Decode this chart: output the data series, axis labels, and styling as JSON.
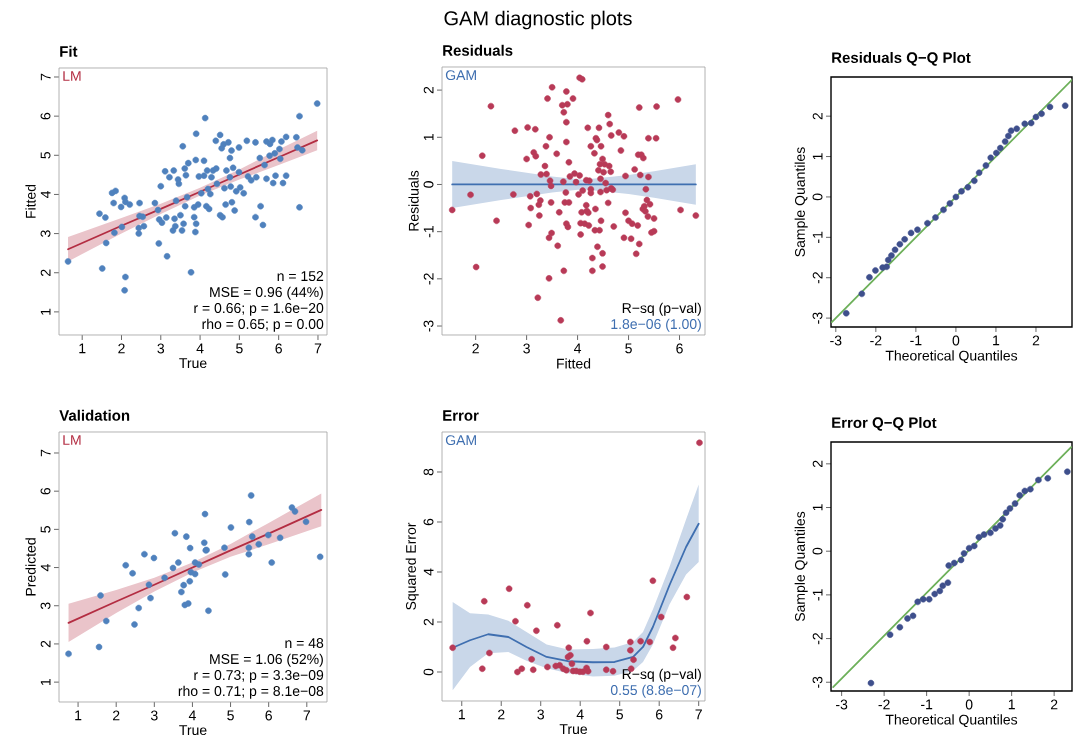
{
  "chart_data": [
    {
      "type": "other",
      "title": "GAM diagnostic plots"
    },
    {
      "type": "scatter",
      "title": "Fit",
      "xlabel": "True",
      "ylabel": "Fitted",
      "xlim": [
        0.41,
        7.23
      ],
      "ylim": [
        0.41,
        7.23
      ],
      "xticks": [
        1,
        2,
        3,
        4,
        5,
        6,
        7
      ],
      "yticks": [
        1,
        2,
        3,
        4,
        5,
        6,
        7
      ],
      "annotations": [
        "n = 152",
        "MSE = 0.96 (44%)",
        "r = 0.66; p = 1.6e−20",
        "rho = 0.65; p = 0.00"
      ],
      "series": [
        {
          "type": "scatter",
          "color": "#4f81bd",
          "x": [
            0.64,
            1.51,
            1.44,
            1.59,
            1.61,
            1.76,
            1.85,
            1.8,
            1.82,
            1.99,
            2.08,
            2.01,
            2.1,
            2.21,
            2.1,
            2.08,
            2.46,
            2.46,
            2.44,
            2.44,
            2.57,
            2.54,
            2.85,
            2.93,
            2.95,
            3.0,
            2.96,
            3.03,
            3.11,
            3.14,
            3.16,
            3.22,
            3.31,
            3.33,
            3.35,
            3.37,
            3.39,
            3.44,
            3.46,
            3.5,
            3.54,
            3.56,
            3.58,
            3.61,
            3.62,
            3.64,
            3.67,
            3.7,
            3.77,
            3.85,
            3.85,
            3.88,
            3.89,
            3.9,
            3.9,
            3.95,
            3.97,
            4.03,
            4.1,
            4.1,
            4.13,
            4.16,
            4.18,
            4.2,
            4.23,
            4.26,
            4.29,
            4.33,
            4.4,
            4.41,
            4.43,
            4.51,
            4.51,
            4.55,
            4.57,
            4.6,
            4.62,
            4.65,
            4.67,
            4.72,
            4.76,
            4.76,
            4.78,
            4.8,
            4.81,
            4.84,
            4.88,
            4.92,
            4.99,
            4.99,
            5.02,
            5.11,
            5.19,
            5.22,
            5.3,
            5.41,
            5.41,
            5.43,
            5.52,
            5.54,
            5.6,
            5.64,
            5.69,
            5.69,
            5.77,
            5.78,
            5.84,
            5.86,
            5.9,
            5.92,
            6.02,
            6.07,
            6.04,
            6.11,
            6.19,
            6.19,
            6.45,
            6.48,
            6.53,
            6.53,
            6.6,
            6.98
          ],
          "values": [
            2.29,
            2.11,
            3.51,
            3.41,
            2.76,
            4.04,
            4.09,
            3.78,
            3.02,
            3.68,
            3.91,
            3.17,
            3.81,
            3.74,
            1.89,
            1.55,
            3.78,
            3.45,
            3.14,
            3.0,
            3.19,
            3.43,
            3.78,
            3.6,
            2.75,
            4.21,
            3.36,
            3.28,
            4.59,
            3.41,
            2.42,
            4.44,
            3.08,
            4.61,
            3.38,
            3.19,
            3.84,
            4.38,
            4.27,
            3.47,
            3.08,
            5.23,
            3.25,
            4.66,
            3.7,
            4.49,
            3.93,
            4.8,
            2.01,
            3.67,
            3.42,
            3.04,
            4.88,
            5.55,
            3.25,
            3.74,
            4.46,
            4.03,
            4.86,
            4.48,
            5.95,
            3.7,
            4.61,
            4.14,
            3.63,
            4.01,
            4.44,
            4.61,
            5.37,
            4.66,
            4.27,
            5.52,
            3.47,
            5.18,
            3.42,
            5.28,
            4.16,
            3.74,
            4.61,
            5.33,
            4.93,
            4.44,
            4.2,
            5.12,
            3.8,
            4.68,
            3.59,
            4.08,
            5.2,
            4.57,
            4.18,
            4.03,
            5.37,
            4.46,
            4.36,
            5.33,
            3.42,
            4.44,
            4.93,
            3.7,
            3.22,
            4.75,
            4.4,
            5.35,
            4.99,
            5.29,
            5.39,
            4.29,
            5.05,
            4.48,
            5.16,
            5.35,
            4.91,
            4.29,
            5.47,
            4.48,
            5.46,
            5.2,
            6.0,
            3.67,
            5.13,
            6.32
          ]
        },
        {
          "type": "line",
          "name": "LM",
          "marker": "none",
          "color": "#b32d42",
          "x": [
            0.64,
            2,
            3,
            4,
            5,
            6,
            6.98
          ],
          "values": [
            2.6,
            3.2,
            3.63,
            4.07,
            4.51,
            4.95,
            5.38
          ],
          "lower": [
            2.29,
            3.0,
            3.5,
            3.97,
            4.38,
            4.75,
            5.13
          ],
          "upper": [
            2.91,
            3.4,
            3.76,
            4.17,
            4.64,
            5.15,
            5.63
          ]
        }
      ]
    },
    {
      "type": "scatter",
      "title": "Residuals",
      "xlabel": "Fitted",
      "ylabel": "Residuals",
      "xlim": [
        1.34,
        6.5
      ],
      "ylim": [
        -3.19,
        2.49
      ],
      "xticks": [
        2,
        3,
        4,
        5,
        6
      ],
      "yticks": [
        -3,
        -2,
        -1,
        0,
        1,
        2
      ],
      "annotations": [
        "R−sq (p−val)",
        "1.8e−06 (1.00)"
      ],
      "series": [
        {
          "type": "scatter",
          "color": "#b83a57",
          "x": [
            1.54,
            1.9,
            2.13,
            2.01,
            2.3,
            2.41,
            2.74,
            2.77,
            3.0,
            3.02,
            3.04,
            3.07,
            3.08,
            3.14,
            3.17,
            3.18,
            3.2,
            3.22,
            3.25,
            3.24,
            3.27,
            3.28,
            3.36,
            3.38,
            3.39,
            3.41,
            3.44,
            3.44,
            3.45,
            3.46,
            3.48,
            3.48,
            3.49,
            3.5,
            3.59,
            3.61,
            3.64,
            3.67,
            3.7,
            3.72,
            3.73,
            3.73,
            3.75,
            3.77,
            3.78,
            3.78,
            3.8,
            3.78,
            3.78,
            3.81,
            3.83,
            3.83,
            3.85,
            3.91,
            3.94,
            3.97,
            4.02,
            4.04,
            4.04,
            4.09,
            4.06,
            4.06,
            4.08,
            4.1,
            4.14,
            4.17,
            4.17,
            4.18,
            4.2,
            4.21,
            4.22,
            4.23,
            4.26,
            4.26,
            4.26,
            4.29,
            4.29,
            4.33,
            4.34,
            4.35,
            4.36,
            4.38,
            4.39,
            4.41,
            4.42,
            4.43,
            4.44,
            4.45,
            4.45,
            4.46,
            4.46,
            4.49,
            4.49,
            4.49,
            4.51,
            4.53,
            4.55,
            4.57,
            4.6,
            4.6,
            4.62,
            4.63,
            4.65,
            4.66,
            4.66,
            4.69,
            4.71,
            4.81,
            4.85,
            4.91,
            4.91,
            4.94,
            4.94,
            5.0,
            5.05,
            5.07,
            5.12,
            5.15,
            5.18,
            5.21,
            5.21,
            5.19,
            5.25,
            5.23,
            5.28,
            5.29,
            5.31,
            5.33,
            5.34,
            5.36,
            5.38,
            5.39,
            5.39,
            5.42,
            5.45,
            5.5,
            5.5,
            5.54,
            5.55,
            5.97,
            6.02,
            6.32
          ],
          "values": [
            -0.54,
            -0.22,
            0.61,
            -1.75,
            1.66,
            -0.77,
            -0.21,
            1.14,
            0.54,
            1.21,
            -0.86,
            -0.25,
            -0.5,
            0.68,
            1.17,
            0.6,
            -0.2,
            -2.4,
            -0.66,
            -0.43,
            -0.34,
            0.21,
            0.39,
            0.81,
            0.22,
            1.82,
            -1.13,
            -1.99,
            1.0,
            0.08,
            -0.03,
            -0.38,
            -1.03,
            2.06,
            0.65,
            -1.3,
            -0.59,
            -2.88,
            1.68,
            0.06,
            1.53,
            -1.83,
            -0.38,
            -0.17,
            1.32,
            0.9,
            1.7,
            1.97,
            -0.83,
            -0.9,
            0.47,
            -0.38,
            0.17,
            1.82,
            0.23,
            0.05,
            -0.21,
            0.19,
            2.26,
            2.23,
            -1.06,
            -0.82,
            -0.59,
            -0.13,
            -0.83,
            -0.44,
            0.09,
            -0.56,
            1.2,
            -0.6,
            -0.87,
            0.08,
            0.81,
            -0.1,
            -0.18,
            -1.56,
            -1.83,
            0.66,
            -0.97,
            -0.52,
            0.98,
            0.94,
            -1.32,
            0.3,
            1.2,
            -0.97,
            0.43,
            0.12,
            -0.16,
            0.81,
            -0.77,
            0.54,
            -1.46,
            -1.74,
            0.26,
            0.43,
            0.03,
            -0.12,
            1.47,
            -0.39,
            0.39,
            1.28,
            0.27,
            -0.08,
            1.04,
            -0.11,
            -0.89,
            1.1,
            0.72,
            1.02,
            -1.13,
            0.18,
            -0.6,
            -0.77,
            -1.15,
            -0.83,
            0.32,
            -1.47,
            -0.87,
            1.63,
            -1.26,
            0.63,
            0.63,
            0.2,
            -0.52,
            0.56,
            -0.46,
            -0.57,
            -0.1,
            -0.33,
            -0.68,
            0.98,
            0.16,
            -0.42,
            -1.02,
            -0.72,
            -0.99,
            0.98,
            1.65,
            1.8,
            -0.54,
            -0.66
          ]
        },
        {
          "type": "line",
          "name": "GAM",
          "marker": "none",
          "color": "#3f6fb0",
          "x": [
            1.54,
            2.5,
            3.5,
            4.1,
            5,
            5.5,
            6.32
          ],
          "values": [
            0,
            0,
            0,
            0,
            0,
            0,
            0
          ],
          "lower": [
            -0.5,
            -0.33,
            -0.17,
            -0.1,
            -0.2,
            -0.28,
            -0.43
          ],
          "upper": [
            0.5,
            0.33,
            0.17,
            0.1,
            0.2,
            0.28,
            0.43
          ]
        }
      ]
    },
    {
      "type": "scatter",
      "title": "Residuals Q−Q Plot",
      "xlabel": "Theoretical Quantiles",
      "ylabel": "Sample Quantiles",
      "xlim": [
        -3.12,
        2.9
      ],
      "ylim": [
        -3.22,
        2.97
      ],
      "xticks": [
        -3,
        -2,
        -1,
        0,
        1,
        2
      ],
      "yticks": [
        -3,
        -2,
        -1,
        0,
        1,
        2
      ],
      "series": [
        {
          "type": "scatter",
          "color": "#3e4f8c",
          "x": [
            -2.74,
            -2.35,
            -2.16,
            -2.01,
            -1.83,
            -1.73,
            -1.69,
            -1.61,
            -1.52,
            -1.4,
            -1.28,
            -1.12,
            -0.96,
            -0.71,
            -0.51,
            -0.31,
            -0.15,
            0,
            0.14,
            0.3,
            0.46,
            0.58,
            0.75,
            0.87,
            1.01,
            1.11,
            1.23,
            1.31,
            1.38,
            1.52,
            1.72,
            1.88,
            2.0,
            2.14,
            2.35,
            2.73
          ],
          "values": [
            -2.88,
            -2.4,
            -1.99,
            -1.82,
            -1.75,
            -1.73,
            -1.56,
            -1.45,
            -1.31,
            -1.17,
            -1.05,
            -0.89,
            -0.81,
            -0.65,
            -0.51,
            -0.32,
            -0.16,
            0,
            0.14,
            0.24,
            0.4,
            0.6,
            0.78,
            0.97,
            1.09,
            1.21,
            1.37,
            1.51,
            1.64,
            1.69,
            1.81,
            1.83,
            1.98,
            2.06,
            2.23,
            2.26
          ]
        },
        {
          "type": "line",
          "marker": "none",
          "color": "#6db05a",
          "x": [
            -3.1,
            2.9
          ],
          "values": [
            -3.1,
            2.9
          ]
        }
      ]
    },
    {
      "type": "scatter",
      "title": "Validation",
      "xlabel": "True",
      "ylabel": "Predicted",
      "xlim": [
        0.5,
        7.53
      ],
      "ylim": [
        0.48,
        7.55
      ],
      "xticks": [
        1,
        2,
        3,
        4,
        5,
        6,
        7
      ],
      "yticks": [
        1,
        2,
        3,
        4,
        5,
        6,
        7
      ],
      "annotations": [
        "n = 48",
        "MSE = 1.06 (52%)",
        "r = 0.73; p = 3.3e−09",
        "rho = 0.71; p = 8.1e−08"
      ],
      "series": [
        {
          "type": "scatter",
          "color": "#4f81bd",
          "x": [
            0.75,
            1.55,
            1.59,
            1.74,
            2.25,
            2.43,
            2.48,
            2.59,
            2.74,
            2.86,
            2.9,
            2.99,
            3.27,
            3.49,
            3.54,
            3.63,
            3.71,
            3.77,
            3.8,
            3.84,
            3.89,
            3.93,
            3.94,
            3.96,
            4.07,
            4.07,
            4.17,
            4.31,
            4.33,
            4.35,
            4.37,
            4.42,
            4.84,
            4.86,
            5.01,
            5.48,
            5.48,
            5.49,
            5.54,
            5.57,
            5.74,
            5.99,
            6.08,
            6.3,
            6.61,
            6.69,
            6.98,
            7.35
          ],
          "values": [
            1.74,
            1.92,
            3.27,
            2.6,
            4.06,
            3.85,
            2.51,
            2.94,
            4.35,
            3.55,
            3.2,
            4.25,
            3.73,
            3.99,
            4.9,
            4.13,
            3.36,
            3.54,
            3.02,
            4.81,
            3.06,
            3.64,
            4.51,
            3.88,
            4.13,
            3.83,
            4.08,
            4.65,
            5.4,
            4.45,
            4.46,
            2.87,
            4.52,
            3.82,
            5.05,
            4.35,
            4.52,
            5.19,
            5.89,
            4.81,
            4.61,
            4.85,
            4.13,
            4.78,
            5.57,
            5.47,
            5.2,
            4.28
          ]
        },
        {
          "type": "line",
          "name": "LM",
          "marker": "none",
          "color": "#b32d42",
          "x": [
            0.75,
            2,
            3,
            4,
            5,
            6,
            7.38
          ],
          "values": [
            2.55,
            3.11,
            3.55,
            4.0,
            4.45,
            4.89,
            5.51
          ],
          "lower": [
            2.05,
            2.81,
            3.37,
            3.87,
            4.28,
            4.61,
            5.08
          ],
          "upper": [
            3.05,
            3.41,
            3.73,
            4.13,
            4.62,
            5.17,
            5.94
          ]
        }
      ]
    },
    {
      "type": "scatter",
      "title": "Error",
      "xlabel": "True",
      "ylabel": "Squared Error",
      "xlim": [
        0.5,
        7.16
      ],
      "ylim": [
        -1.16,
        9.6
      ],
      "xticks": [
        1,
        2,
        3,
        4,
        5,
        6,
        7
      ],
      "yticks": [
        0,
        2,
        4,
        6,
        8
      ],
      "annotations": [
        "R−sq (p−val)",
        "0.55 (8.8e−07)"
      ],
      "series": [
        {
          "type": "scatter",
          "color": "#b83a57",
          "x": [
            0.77,
            1.52,
            1.57,
            1.7,
            2.2,
            2.36,
            2.41,
            2.52,
            2.66,
            2.77,
            2.81,
            2.89,
            3.17,
            3.38,
            3.42,
            3.48,
            3.57,
            3.65,
            3.69,
            3.71,
            3.75,
            3.79,
            3.82,
            3.9,
            3.99,
            4.07,
            4.16,
            4.17,
            4.2,
            4.26,
            4.66,
            4.66,
            4.83,
            5.27,
            5.27,
            5.29,
            5.35,
            5.53,
            5.76,
            5.84,
            6.05,
            6.35,
            6.41,
            6.7,
            7.02
          ],
          "values": [
            0.97,
            0.13,
            2.83,
            0.76,
            3.33,
            2.03,
            0.0,
            0.13,
            2.67,
            0.51,
            0.09,
            1.65,
            0.2,
            0.24,
            1.87,
            0.27,
            0.13,
            0.07,
            0.6,
            0.97,
            0.67,
            0.33,
            0.04,
            0.04,
            0.01,
            0.01,
            0.16,
            1.23,
            0.03,
            2.36,
            1.0,
            0.09,
            0.03,
            1.2,
            0.87,
            0.13,
            0.49,
            1.23,
            1.2,
            3.65,
            2.2,
            0.97,
            1.36,
            3.0,
            9.17
          ]
        },
        {
          "type": "line",
          "name": "GAM",
          "marker": "none",
          "color": "#3f6fb0",
          "x": [
            0.77,
            1.21,
            1.67,
            2.18,
            2.64,
            3.15,
            3.69,
            4.32,
            4.87,
            5.34,
            5.59,
            5.84,
            6.26,
            6.68,
            7.0
          ],
          "values": [
            0.97,
            1.27,
            1.51,
            1.4,
            1.0,
            0.6,
            0.43,
            0.39,
            0.4,
            0.6,
            1.0,
            1.8,
            3.47,
            5.0,
            5.93
          ],
          "lower": [
            -0.73,
            0.2,
            0.75,
            0.8,
            0.45,
            0.15,
            -0.05,
            -0.18,
            -0.15,
            0.05,
            0.4,
            1.1,
            2.7,
            3.9,
            4.4
          ],
          "upper": [
            2.8,
            2.35,
            2.3,
            2.05,
            1.6,
            1.1,
            0.9,
            0.92,
            0.98,
            1.2,
            1.6,
            2.5,
            4.2,
            6.1,
            7.5
          ]
        }
      ]
    },
    {
      "type": "scatter",
      "title": "Error Q−Q Plot",
      "xlabel": "Theoretical Quantiles",
      "ylabel": "Sample Quantiles",
      "xlim": [
        -3.25,
        2.42
      ],
      "ylim": [
        -3.2,
        2.5
      ],
      "xticks": [
        -3,
        -2,
        -1,
        0,
        1,
        2
      ],
      "yticks": [
        -3,
        -2,
        -1,
        0,
        1,
        2
      ],
      "series": [
        {
          "type": "scatter",
          "color": "#3e4f8c",
          "x": [
            -2.31,
            -1.86,
            -1.63,
            -1.45,
            -1.32,
            -1.21,
            -1.08,
            -0.94,
            -0.81,
            -0.69,
            -0.62,
            -0.5,
            -0.48,
            -0.35,
            -0.19,
            -0.12,
            0,
            0.12,
            0.23,
            0.35,
            0.5,
            0.62,
            0.73,
            0.79,
            0.87,
            0.96,
            1.08,
            1.19,
            1.31,
            1.44,
            1.63,
            1.85,
            2.31
          ],
          "values": [
            -3.02,
            -1.91,
            -1.74,
            -1.54,
            -1.48,
            -1.16,
            -1.1,
            -1.1,
            -0.98,
            -0.91,
            -0.79,
            -0.72,
            -0.33,
            -0.27,
            -0.2,
            -0.05,
            0.07,
            0.12,
            0.32,
            0.38,
            0.42,
            0.52,
            0.59,
            0.73,
            0.88,
            0.98,
            1.09,
            1.28,
            1.38,
            1.42,
            1.63,
            1.67,
            1.82
          ]
        },
        {
          "type": "line",
          "marker": "none",
          "color": "#6db05a",
          "x": [
            -3.2,
            2.4
          ],
          "values": [
            -3.11,
            2.38
          ]
        }
      ]
    }
  ]
}
